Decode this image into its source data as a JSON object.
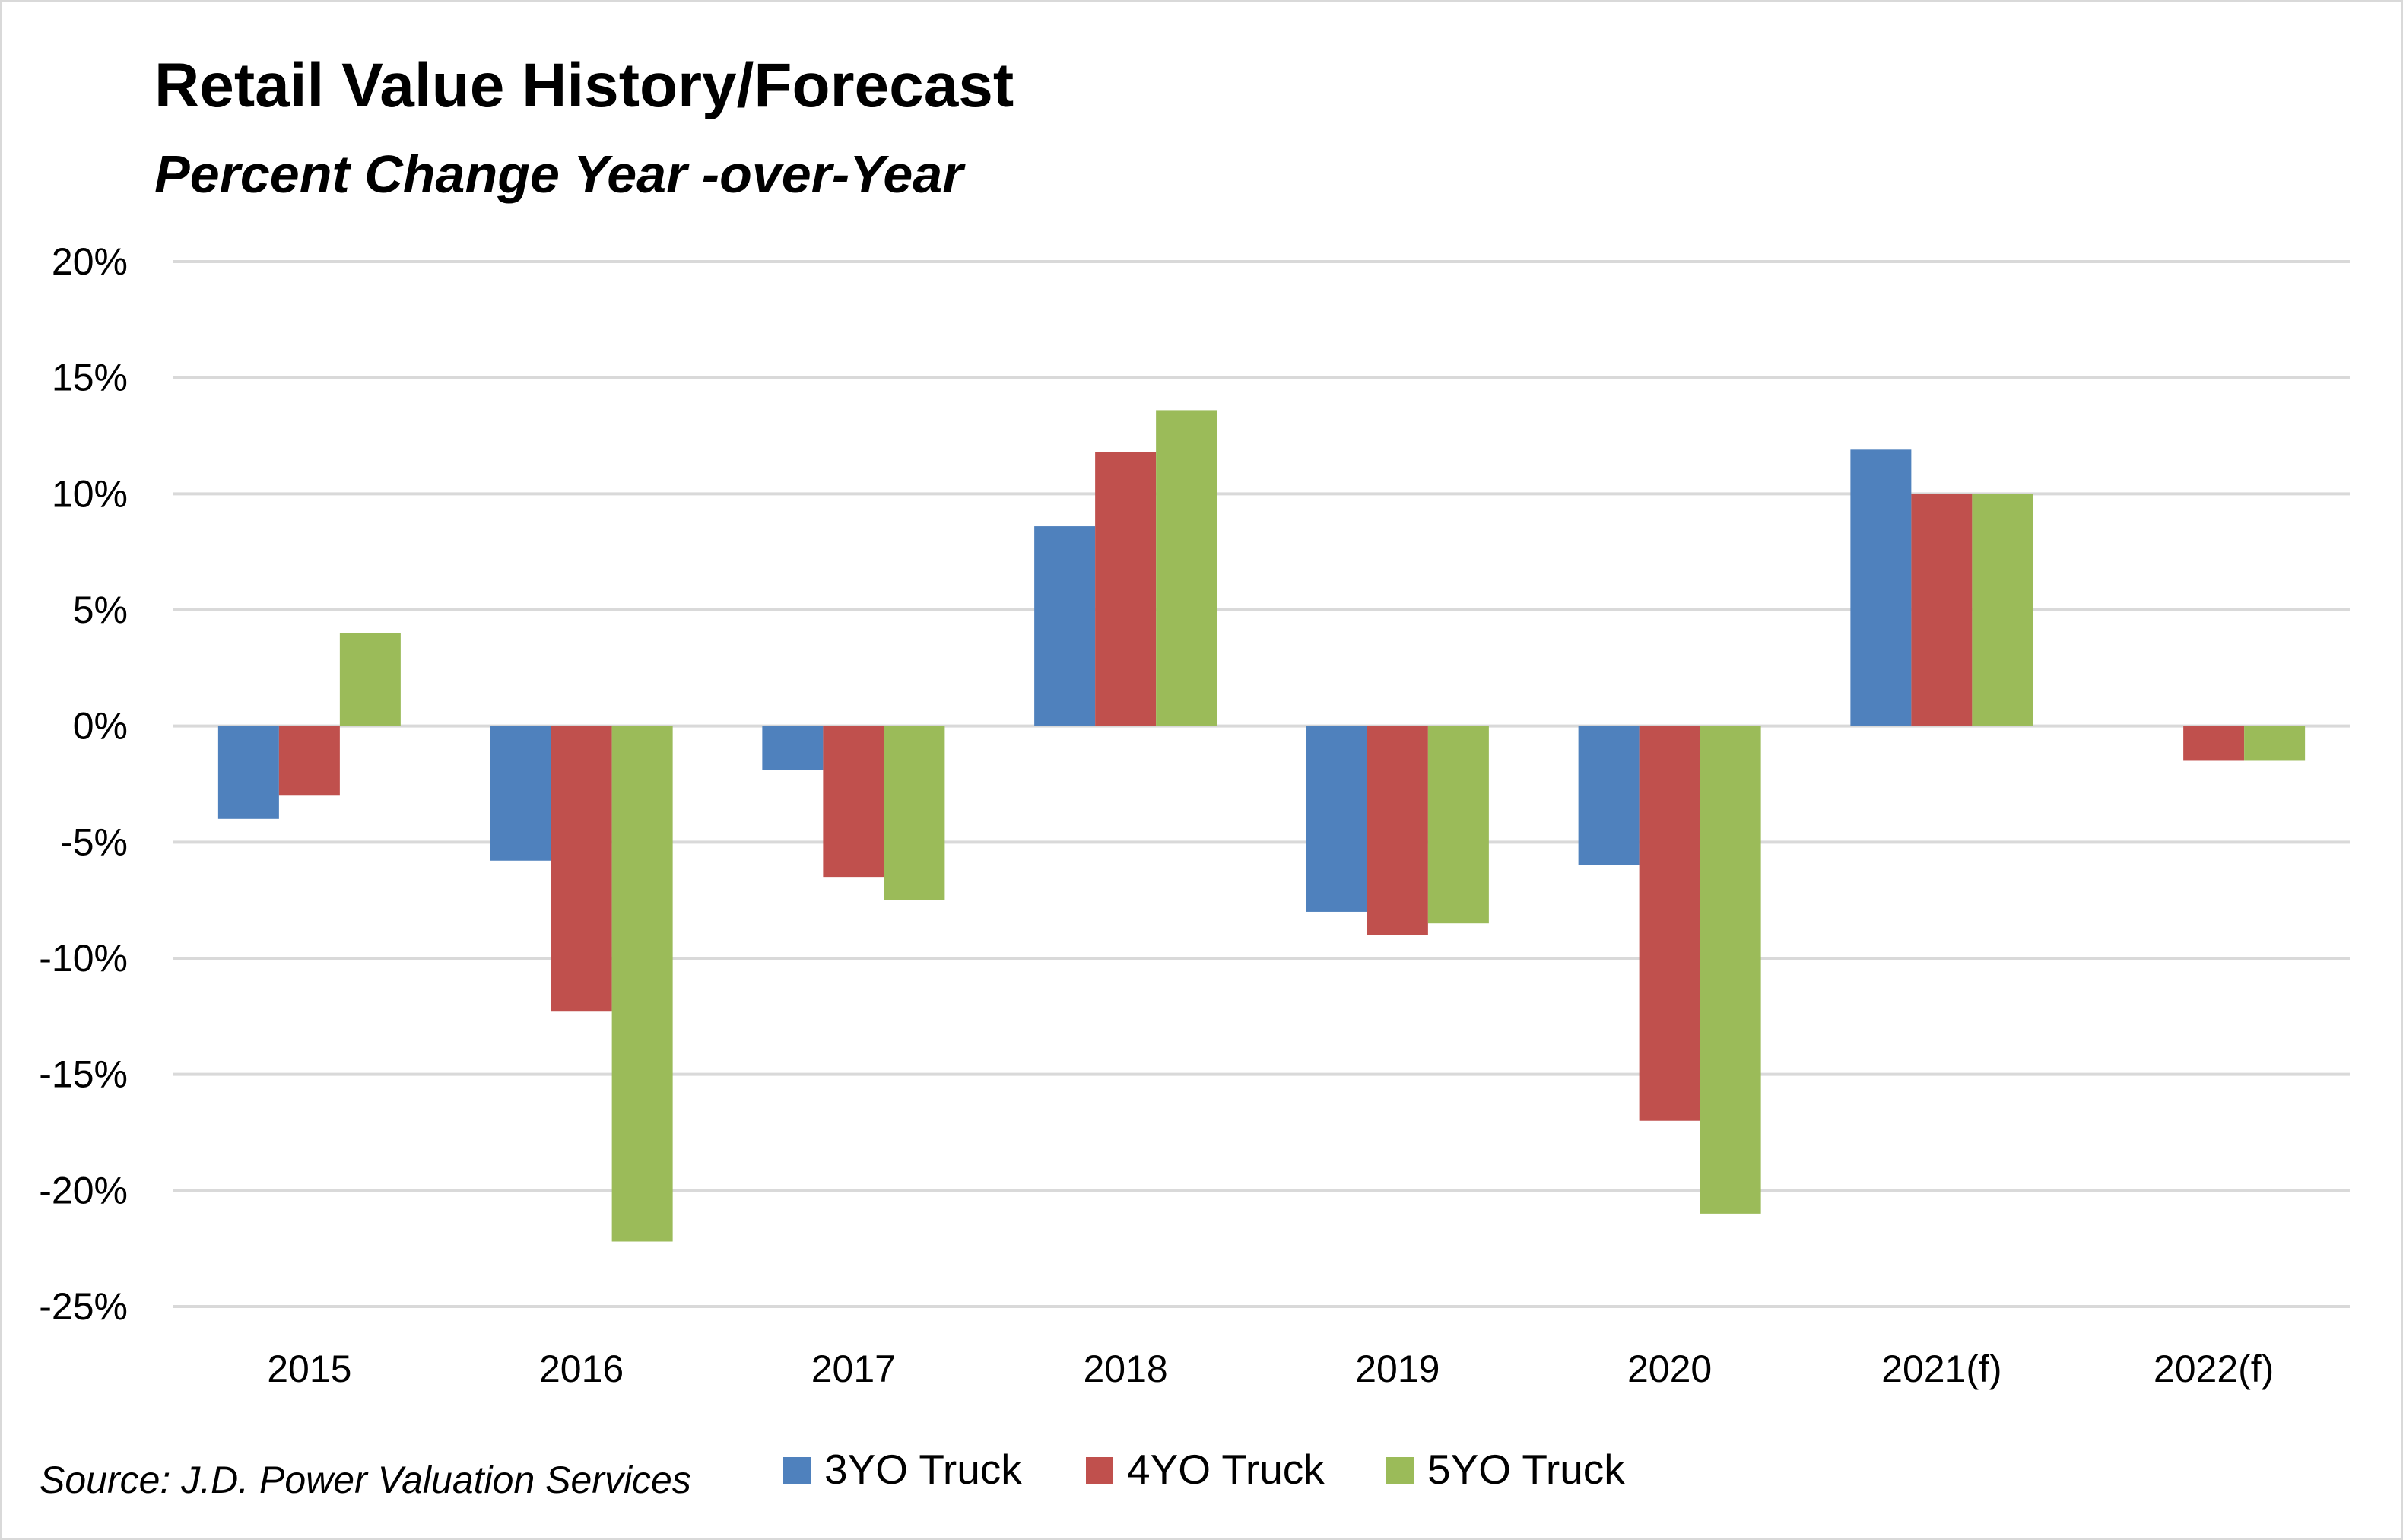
{
  "chart_data": {
    "type": "bar",
    "title": "Retail Value History/Forecast",
    "subtitle": "Percent Change Year -over-Year",
    "source": "Source: J.D. Power Valuation Services",
    "categories": [
      "2015",
      "2016",
      "2017",
      "2018",
      "2019",
      "2020",
      "2021(f)",
      "2022(f)"
    ],
    "series": [
      {
        "name": "3YO Truck",
        "color": "#4f81bd",
        "values": [
          -4.0,
          -5.8,
          -1.9,
          8.6,
          -8.0,
          -6.0,
          11.9,
          null
        ]
      },
      {
        "name": "4YO Truck",
        "color": "#c0504d",
        "values": [
          -3.0,
          -12.3,
          -6.5,
          11.8,
          -9.0,
          -17.0,
          10.0,
          -1.5
        ]
      },
      {
        "name": "5YO Truck",
        "color": "#9bbb59",
        "values": [
          4.0,
          -22.2,
          -7.5,
          13.6,
          -8.5,
          -21.0,
          10.0,
          -1.5
        ]
      }
    ],
    "ylim": [
      -25,
      20
    ],
    "yticks": [
      20,
      15,
      10,
      5,
      0,
      -5,
      -10,
      -15,
      -20,
      -25
    ],
    "ytick_labels": [
      "20%",
      "15%",
      "10%",
      "5%",
      "0%",
      "-5%",
      "-10%",
      "-15%",
      "-20%",
      "-25%"
    ],
    "xlabel": "",
    "ylabel": "",
    "grid": true,
    "legend_position": "bottom",
    "gridline_color": "#d9d9d9"
  }
}
